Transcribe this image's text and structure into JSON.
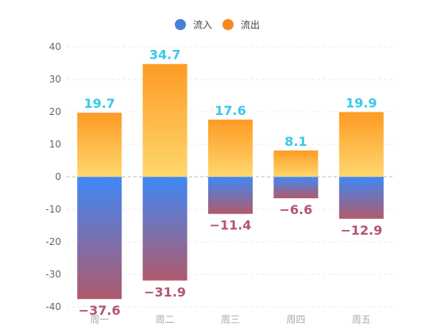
{
  "chart_data": {
    "type": "bar",
    "categories": [
      "周一",
      "周二",
      "周三",
      "周四",
      "周五"
    ],
    "series": [
      {
        "name": "流入",
        "values": [
          -37.6,
          -31.9,
          -11.4,
          -6.6,
          -12.9
        ],
        "color": "#4a7fd8"
      },
      {
        "name": "流出",
        "values": [
          19.7,
          34.7,
          17.6,
          8.1,
          19.9
        ],
        "color": "#f7871f"
      }
    ],
    "data_labels_in": [
      "−37.6",
      "−31.9",
      "−11.4",
      "−6.6",
      "−12.9"
    ],
    "data_labels_out": [
      "19.7",
      "34.7",
      "17.6",
      "8.1",
      "19.9"
    ],
    "y_ticks": [
      "40",
      "30",
      "20",
      "10",
      "0",
      "-10",
      "-20",
      "-30",
      "-40"
    ],
    "ylim": [
      -40,
      40
    ],
    "stacked": true,
    "grid": true,
    "legend_position": "top-center",
    "colors": {
      "out_top": "#fd9b24",
      "out_bottom": "#ffd76e",
      "in_top": "#3f88f6",
      "in_bottom": "#b05a6c",
      "label_positive": "#39c9e9",
      "label_negative": "#b3566e"
    }
  }
}
